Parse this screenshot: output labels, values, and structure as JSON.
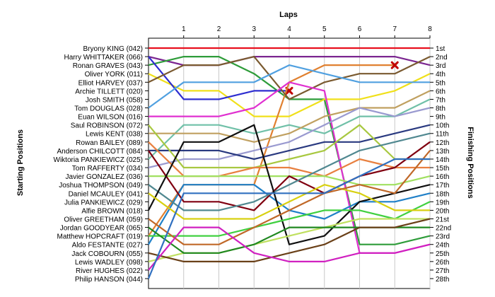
{
  "chart_data": {
    "type": "line",
    "title": "",
    "top_axis_label": "Laps",
    "left_axis_label": "Starting Positions",
    "right_axis_label": "Finishing Positions",
    "laps": [
      0,
      1,
      2,
      3,
      4,
      5,
      6,
      7,
      8
    ],
    "lap_tick_labels": [
      "1",
      "2",
      "3",
      "4",
      "5",
      "6",
      "7",
      "8"
    ],
    "drivers": [
      "Bryony KING (042)",
      "Harry WHITTAKER (066)",
      "Ronan GRAVES (043)",
      "Oliver YORK (011)",
      "Elliot HARVEY (037)",
      "Archie TILLETT (020)",
      "Josh SMITH (058)",
      "Tom DOUGLAS (028)",
      "Euan WILSON (016)",
      "Saul ROBINSON (072)",
      "Lewis KENT (038)",
      "Rowan BAILEY (089)",
      "Anderson CHILCOTT (084)",
      "Wiktoria PANKIEWICZ (025)",
      "Tom RAFFERTY (034)",
      "Javier GONZALEZ (036)",
      "Joshua THOMPSON (049)",
      "Daniel MCAULEY (041)",
      "Julia PANKIEWICZ (029)",
      "Alfie BROWN (018)",
      "Oliver GREETHAM (059)",
      "Jordan GOODYEAR (065)",
      "Matthew HOPCRAFT (019)",
      "Aldo FESTANTE (027)",
      "Jack COBOURN (055)",
      "Lewis WADLEY (098)",
      "River HUGHES (022)",
      "Philip HANSON (044)"
    ],
    "finishing_positions": [
      "1st",
      "2nd",
      "3rd",
      "4th",
      "5th",
      "6th",
      "7th",
      "8th",
      "9th",
      "10th",
      "11th",
      "12th",
      "13th",
      "14th",
      "15th",
      "16th",
      "17th",
      "18th",
      "19th",
      "20th",
      "21st",
      "22nd",
      "23rd",
      "24th",
      "25th",
      "26th",
      "27th",
      "28th"
    ],
    "y_range": [
      1,
      28
    ],
    "x_range": [
      0,
      8
    ],
    "grid": "vertical lines at each lap",
    "series": [
      {
        "color": "#e8101e",
        "positions": [
          1,
          1,
          1,
          1,
          1,
          1,
          1,
          1,
          1
        ],
        "retired": false
      },
      {
        "color": "#7b2690",
        "positions": [
          2,
          3,
          3,
          2,
          2,
          2,
          2,
          2,
          3
        ],
        "retired": false
      },
      {
        "color": "#2e9c3a",
        "positions": [
          3,
          2,
          2,
          4,
          7,
          7,
          24,
          24,
          23
        ],
        "retired": false
      },
      {
        "color": "#f0e01a",
        "positions": [
          4,
          6,
          6,
          9,
          9,
          7,
          7,
          6,
          4
        ],
        "retired": false
      },
      {
        "color": "#2e2ed0",
        "positions": [
          2,
          7,
          7,
          6,
          6
        ],
        "retired": true
      },
      {
        "color": "#e08030",
        "positions": [
          23,
          17,
          17,
          17,
          5,
          3,
          3,
          3
        ],
        "retired": true
      },
      {
        "color": "#7a5a30",
        "positions": [
          5,
          3,
          3,
          2,
          7,
          5,
          4,
          4,
          2
        ],
        "retired": false
      },
      {
        "color": "#50a0e0",
        "positions": [
          8,
          5,
          5,
          5,
          3,
          4,
          5,
          5,
          5
        ],
        "retired": false
      },
      {
        "color": "#e030d0",
        "positions": [
          9,
          9,
          9,
          8,
          5,
          6,
          25,
          25,
          24
        ],
        "retired": false
      },
      {
        "color": "#70c0a8",
        "positions": [
          14,
          10,
          10,
          11,
          10,
          11,
          9,
          9,
          7
        ],
        "retired": false
      },
      {
        "color": "#c0a060",
        "positions": [
          11,
          11,
          11,
          12,
          11,
          9,
          8,
          8,
          6
        ],
        "retired": false
      },
      {
        "color": "#9a9ad0",
        "positions": [
          15,
          14,
          14,
          13,
          12,
          10,
          8,
          9,
          8
        ],
        "retired": false
      },
      {
        "color": "#2a3a80",
        "positions": [
          13,
          13,
          13,
          14,
          13,
          12,
          12,
          11,
          10
        ],
        "retired": false
      },
      {
        "color": "#a8c840",
        "positions": [
          10,
          15,
          15,
          15,
          14,
          13,
          10,
          14,
          14
        ],
        "retired": false
      },
      {
        "color": "#e88040",
        "positions": [
          12,
          16,
          16,
          15,
          15,
          16,
          14,
          15,
          15
        ],
        "retired": false
      },
      {
        "color": "#2080c8",
        "positions": [
          24,
          17,
          17,
          17,
          20,
          21,
          19,
          19,
          18
        ],
        "retired": false
      },
      {
        "color": "#a0e060",
        "positions": [
          16,
          16,
          16,
          16,
          16,
          16,
          17,
          17,
          16
        ],
        "retired": false
      },
      {
        "color": "#800010",
        "positions": [
          13,
          19,
          19,
          20,
          16,
          18,
          16,
          15,
          12
        ],
        "retired": false
      },
      {
        "color": "#508890",
        "positions": [
          17,
          20,
          20,
          19,
          17,
          15,
          13,
          12,
          11
        ],
        "retired": false
      },
      {
        "color": "#101010",
        "positions": [
          20,
          12,
          12,
          10,
          24,
          23,
          19,
          18,
          17
        ],
        "retired": false
      },
      {
        "color": "#40d040",
        "positions": [
          23,
          23,
          23,
          22,
          21,
          20,
          20,
          21,
          19
        ],
        "retired": false
      },
      {
        "color": "#d8d010",
        "positions": [
          18,
          21,
          21,
          21,
          19,
          17,
          18,
          20,
          20
        ],
        "retired": false
      },
      {
        "color": "#c06828",
        "positions": [
          21,
          24,
          24,
          22,
          20,
          18,
          17,
          18,
          13
        ],
        "retired": false
      },
      {
        "color": "#c0e060",
        "positions": [
          26,
          25,
          25,
          24,
          23,
          22,
          21,
          21,
          21
        ],
        "retired": false
      },
      {
        "color": "#208820",
        "positions": [
          22,
          25,
          25,
          24,
          22,
          22,
          22,
          22,
          22
        ],
        "retired": false
      },
      {
        "color": "#6a4018",
        "positions": [
          25,
          26,
          26,
          26,
          25,
          24,
          22,
          22,
          21
        ],
        "retired": false
      },
      {
        "color": "#d020c0",
        "positions": [
          27,
          22,
          22,
          25,
          26,
          26,
          25,
          25,
          24
        ],
        "retired": false
      },
      {
        "color": "#3070c0",
        "positions": [
          28,
          18,
          18,
          18,
          18,
          18,
          16,
          14,
          14
        ],
        "retired": false
      }
    ]
  }
}
